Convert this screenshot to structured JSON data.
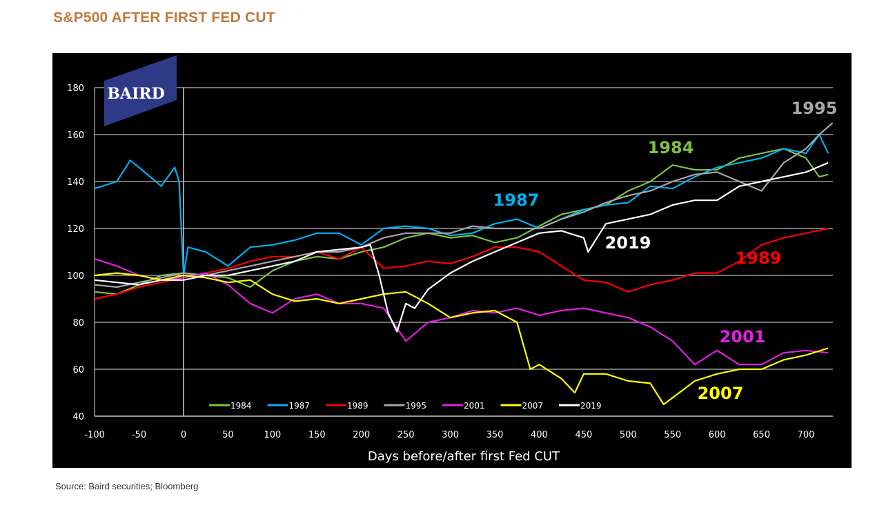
{
  "title": "S&P500 AFTER FIRST FED CUT",
  "source": "Source: Baird securities; Bloomberg",
  "logo_text": "BAIRD",
  "colors": {
    "background": "#000000",
    "title": "#c07a3c",
    "logo": "#2e3a87",
    "grid": "#9a9a9a"
  },
  "chart_data": {
    "type": "line",
    "xlabel": "Days before/after first Fed CUT",
    "ylabel": "",
    "xlim": [
      -100,
      730
    ],
    "ylim": [
      40,
      180
    ],
    "xticks": [
      -100,
      -50,
      0,
      50,
      100,
      150,
      200,
      250,
      300,
      350,
      400,
      450,
      500,
      550,
      600,
      650,
      700
    ],
    "yticks": [
      40,
      60,
      80,
      100,
      120,
      140,
      160,
      180
    ],
    "grid": "horizontal",
    "vline_at": 0,
    "legend": "bottom",
    "series": [
      {
        "name": "1984",
        "color": "#7dc242",
        "label": "1984",
        "x": [
          -100,
          -75,
          -50,
          -25,
          0,
          25,
          50,
          75,
          100,
          125,
          150,
          175,
          200,
          225,
          250,
          275,
          300,
          325,
          350,
          375,
          400,
          425,
          450,
          475,
          500,
          525,
          550,
          575,
          600,
          625,
          650,
          675,
          700,
          715,
          725
        ],
        "y": [
          93,
          92,
          96,
          100,
          101,
          100,
          99,
          95,
          102,
          106,
          108,
          107,
          110,
          112,
          116,
          118,
          116,
          117,
          114,
          116,
          121,
          126,
          128,
          130,
          136,
          140,
          147,
          145,
          145,
          150,
          152,
          154,
          150,
          142,
          143
        ]
      },
      {
        "name": "1987",
        "color": "#00b0f0",
        "label": "1987",
        "x": [
          -100,
          -75,
          -60,
          -50,
          -25,
          -10,
          -5,
          0,
          5,
          25,
          50,
          75,
          100,
          125,
          150,
          175,
          200,
          225,
          250,
          275,
          300,
          325,
          350,
          375,
          400,
          425,
          450,
          475,
          500,
          525,
          550,
          575,
          600,
          625,
          650,
          675,
          700,
          715,
          725
        ],
        "y": [
          137,
          140,
          149,
          146,
          138,
          146,
          140,
          100,
          112,
          110,
          104,
          112,
          113,
          115,
          118,
          118,
          113,
          120,
          121,
          120,
          117,
          118,
          122,
          124,
          120,
          124,
          128,
          130,
          131,
          138,
          137,
          142,
          146,
          148,
          150,
          154,
          152,
          160,
          152
        ]
      },
      {
        "name": "1989",
        "color": "#ff0000",
        "label": "1989",
        "x": [
          -100,
          -75,
          -50,
          -25,
          0,
          25,
          50,
          75,
          100,
          125,
          150,
          175,
          200,
          225,
          250,
          275,
          300,
          325,
          350,
          375,
          400,
          425,
          450,
          475,
          500,
          525,
          550,
          575,
          600,
          625,
          650,
          675,
          700,
          725
        ],
        "y": [
          90,
          92,
          95,
          97,
          99,
          101,
          103,
          106,
          108,
          108,
          110,
          107,
          112,
          103,
          104,
          106,
          105,
          108,
          112,
          112,
          110,
          104,
          98,
          97,
          93,
          96,
          98,
          101,
          101,
          106,
          113,
          116,
          118,
          120
        ]
      },
      {
        "name": "1995",
        "color": "#a6a6a6",
        "label": "1995",
        "x": [
          -100,
          -75,
          -50,
          -25,
          0,
          25,
          50,
          75,
          100,
          125,
          150,
          175,
          200,
          225,
          250,
          275,
          300,
          325,
          350,
          375,
          400,
          425,
          450,
          475,
          500,
          525,
          550,
          575,
          600,
          625,
          650,
          675,
          700,
          715,
          730
        ],
        "y": [
          96,
          95,
          97,
          99,
          101,
          100,
          102,
          104,
          106,
          108,
          110,
          110,
          112,
          116,
          118,
          118,
          118,
          121,
          120,
          120,
          120,
          124,
          127,
          131,
          134,
          136,
          140,
          143,
          144,
          140,
          136,
          148,
          154,
          160,
          165
        ]
      },
      {
        "name": "2001",
        "color": "#e020e0",
        "label": "2001",
        "x": [
          -100,
          -75,
          -50,
          -25,
          0,
          25,
          50,
          75,
          100,
          125,
          150,
          175,
          200,
          225,
          250,
          275,
          300,
          325,
          350,
          375,
          400,
          425,
          450,
          475,
          500,
          525,
          550,
          575,
          600,
          625,
          650,
          675,
          700,
          725
        ],
        "y": [
          107,
          104,
          100,
          98,
          99,
          101,
          96,
          88,
          84,
          90,
          92,
          88,
          88,
          86,
          72,
          80,
          82,
          85,
          84,
          86,
          83,
          85,
          86,
          84,
          82,
          78,
          72,
          62,
          68,
          62,
          62,
          67,
          68,
          67
        ]
      },
      {
        "name": "2007",
        "color": "#ffff00",
        "label": "2007",
        "x": [
          -100,
          -75,
          -50,
          -25,
          0,
          25,
          50,
          75,
          100,
          125,
          150,
          175,
          200,
          225,
          250,
          275,
          300,
          325,
          350,
          375,
          390,
          400,
          425,
          440,
          450,
          475,
          500,
          525,
          540,
          575,
          600,
          625,
          650,
          675,
          700,
          725
        ],
        "y": [
          100,
          101,
          100,
          98,
          100,
          99,
          97,
          98,
          92,
          89,
          90,
          88,
          90,
          92,
          93,
          88,
          82,
          84,
          85,
          80,
          60,
          62,
          56,
          50,
          58,
          58,
          55,
          54,
          45,
          55,
          58,
          60,
          60,
          64,
          66,
          69
        ]
      },
      {
        "name": "2019",
        "color": "#ffffff",
        "label": "2019",
        "x": [
          -100,
          -75,
          -50,
          -25,
          0,
          25,
          50,
          75,
          100,
          125,
          150,
          175,
          200,
          210,
          220,
          230,
          240,
          250,
          260,
          275,
          300,
          325,
          350,
          375,
          400,
          425,
          450,
          455,
          475,
          500,
          525,
          550,
          575,
          600,
          625,
          650,
          675,
          700,
          725
        ],
        "y": [
          98,
          97,
          96,
          98,
          98,
          100,
          100,
          102,
          104,
          106,
          110,
          111,
          112,
          113,
          100,
          84,
          76,
          88,
          86,
          94,
          101,
          106,
          110,
          114,
          118,
          119,
          116,
          110,
          122,
          124,
          126,
          130,
          132,
          132,
          138,
          140,
          142,
          144,
          148
        ]
      }
    ]
  }
}
